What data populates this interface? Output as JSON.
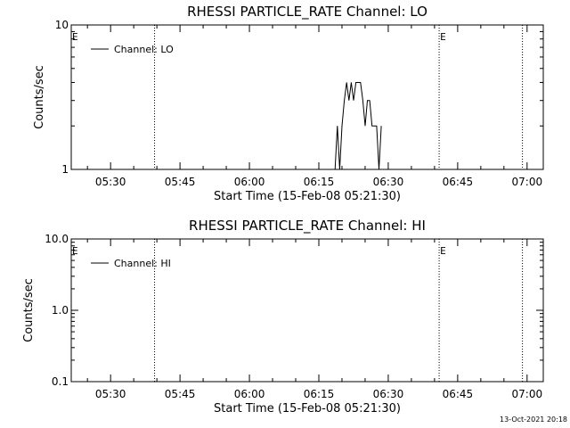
{
  "footer": {
    "timestamp": "13-Oct-2021 20:18"
  },
  "colors": {
    "background": "#ffffff",
    "foreground": "#000000"
  },
  "chart_data": [
    {
      "type": "line",
      "title": "RHESSI PARTICLE_RATE Channel: LO",
      "xlabel": "Start Time (15-Feb-08 05:21:30)",
      "ylabel": "Counts/sec",
      "y_scale": "log",
      "ylim": [
        1,
        10
      ],
      "y_ticks": [
        {
          "value": 1,
          "label": "1"
        },
        {
          "value": 10,
          "label": "10"
        }
      ],
      "xlim": [
        "05:21:30",
        "07:03:30"
      ],
      "x_ticks": [
        "05:30",
        "05:45",
        "06:00",
        "06:15",
        "06:30",
        "06:45",
        "07:00"
      ],
      "grid": false,
      "legend": {
        "position": "top-left",
        "entries": [
          "Channel: LO"
        ]
      },
      "event_markers": [
        {
          "time": "05:21:30",
          "label": "E"
        },
        {
          "time": "06:41:00",
          "label": "E"
        }
      ],
      "vertical_lines": [
        "05:39:30",
        "06:41:00",
        "06:59:00"
      ],
      "series": [
        {
          "name": "Channel: LO",
          "x": [
            "06:18:30",
            "06:19:00",
            "06:19:30",
            "06:20:00",
            "06:20:30",
            "06:21:00",
            "06:21:30",
            "06:22:00",
            "06:22:30",
            "06:23:00",
            "06:23:30",
            "06:24:00",
            "06:24:30",
            "06:25:00",
            "06:25:30",
            "06:26:00",
            "06:26:30",
            "06:27:00",
            "06:27:30",
            "06:28:00",
            "06:28:30"
          ],
          "values": [
            1.0,
            2.0,
            1.0,
            2.0,
            3.0,
            4.0,
            3.0,
            4.0,
            3.0,
            4.0,
            4.0,
            4.0,
            3.0,
            2.0,
            3.0,
            3.0,
            2.0,
            2.0,
            2.0,
            1.0,
            2.0
          ]
        }
      ]
    },
    {
      "type": "line",
      "title": "RHESSI PARTICLE_RATE Channel: HI",
      "xlabel": "Start Time (15-Feb-08 05:21:30)",
      "ylabel": "Counts/sec",
      "y_scale": "log",
      "ylim": [
        0.1,
        10
      ],
      "y_ticks": [
        {
          "value": 0.1,
          "label": "0.1"
        },
        {
          "value": 1,
          "label": "1.0"
        },
        {
          "value": 10,
          "label": "10.0"
        }
      ],
      "xlim": [
        "05:21:30",
        "07:03:30"
      ],
      "x_ticks": [
        "05:30",
        "05:45",
        "06:00",
        "06:15",
        "06:30",
        "06:45",
        "07:00"
      ],
      "grid": false,
      "legend": {
        "position": "top-left",
        "entries": [
          "Channel: HI"
        ]
      },
      "event_markers": [
        {
          "time": "05:21:30",
          "label": "E"
        },
        {
          "time": "06:41:00",
          "label": "E"
        }
      ],
      "vertical_lines": [
        "05:39:30",
        "06:41:00",
        "06:59:00"
      ],
      "series": [
        {
          "name": "Channel: HI",
          "x": [],
          "values": []
        }
      ]
    }
  ]
}
